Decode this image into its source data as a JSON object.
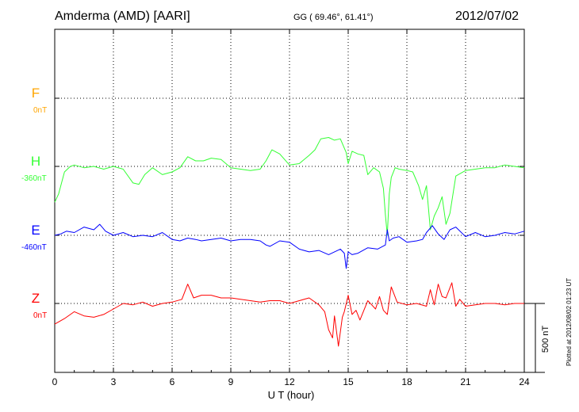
{
  "header": {
    "station": "Amderma (AMD)  [AARI]",
    "coords": "GG ( 69.46°,  61.41°)",
    "date": "2012/07/02"
  },
  "footer_note": "Plotted at 2012/08/02 01:23 UT",
  "chart_data": {
    "type": "line",
    "title": "Amderma (AMD)  [AARI]",
    "xlabel": "U T (hour)",
    "xlim": [
      0,
      24
    ],
    "xticks": [
      "0",
      "3",
      "6",
      "9",
      "12",
      "15",
      "18",
      "21",
      "24"
    ],
    "grid": true,
    "scale_bar": {
      "label": "500 nT",
      "value_nT": 500
    },
    "series": [
      {
        "name": "F",
        "baseline_label": "0nT",
        "color": "#ffa500",
        "x": [],
        "values": []
      },
      {
        "name": "H",
        "baseline_label": "-360nT",
        "color": "#33ff33",
        "x": [
          0,
          0.2,
          0.5,
          0.8,
          1.0,
          1.5,
          2.0,
          2.5,
          3.0,
          3.5,
          4.0,
          4.3,
          4.6,
          5.0,
          5.5,
          6.0,
          6.4,
          6.8,
          7.2,
          7.6,
          8.0,
          8.5,
          9.0,
          9.5,
          10.0,
          10.5,
          10.8,
          11.1,
          11.5,
          12.0,
          12.5,
          13.0,
          13.3,
          13.6,
          14.0,
          14.3,
          14.6,
          14.9,
          15.0,
          15.2,
          15.5,
          15.8,
          16.0,
          16.3,
          16.6,
          16.8,
          16.9,
          17.0,
          17.1,
          17.2,
          17.4,
          17.6,
          18.0,
          18.3,
          18.6,
          18.8,
          19.0,
          19.2,
          19.4,
          19.6,
          19.8,
          20.0,
          20.2,
          20.5,
          21.0,
          21.5,
          22.0,
          22.5,
          23.0,
          23.5,
          24.0
        ],
        "values": [
          -260,
          -200,
          -40,
          0,
          10,
          -10,
          0,
          -20,
          0,
          -20,
          -120,
          -130,
          -60,
          -10,
          -60,
          -40,
          -10,
          70,
          40,
          40,
          60,
          50,
          -10,
          -20,
          -30,
          -20,
          40,
          120,
          90,
          10,
          20,
          80,
          120,
          200,
          210,
          190,
          200,
          100,
          20,
          110,
          90,
          80,
          -60,
          -10,
          -40,
          -160,
          -350,
          -500,
          -200,
          -80,
          -10,
          -20,
          -30,
          -40,
          -140,
          -240,
          -140,
          -460,
          -360,
          -300,
          -220,
          -420,
          -340,
          -70,
          -30,
          -20,
          -10,
          -10,
          10,
          0,
          -10
        ]
      },
      {
        "name": "E",
        "baseline_label": "-460nT",
        "color": "#0000ff",
        "x": [
          0,
          0.3,
          0.6,
          1.0,
          1.5,
          2.0,
          2.3,
          2.6,
          3.0,
          3.5,
          4.0,
          4.5,
          5.0,
          5.5,
          6.0,
          6.4,
          6.8,
          7.2,
          7.5,
          8.0,
          8.5,
          9.0,
          9.5,
          10.0,
          10.5,
          10.8,
          11.0,
          11.5,
          12.0,
          12.5,
          13.0,
          13.5,
          14.0,
          14.3,
          14.6,
          14.8,
          14.9,
          15.0,
          15.2,
          15.5,
          16.0,
          16.5,
          16.9,
          17.0,
          17.1,
          17.3,
          17.6,
          18.0,
          18.5,
          18.8,
          19.0,
          19.3,
          19.6,
          19.9,
          20.2,
          20.5,
          21.0,
          21.5,
          22.0,
          22.5,
          23.0,
          23.5,
          24.0
        ],
        "values": [
          0,
          10,
          30,
          20,
          60,
          40,
          80,
          30,
          0,
          20,
          -10,
          0,
          -10,
          20,
          -30,
          -40,
          -20,
          -30,
          -40,
          -30,
          -20,
          -40,
          -30,
          -30,
          -40,
          -70,
          -80,
          -40,
          -50,
          -100,
          -120,
          -110,
          -140,
          -120,
          -100,
          -130,
          -240,
          -120,
          -140,
          -130,
          -90,
          -100,
          -70,
          40,
          -40,
          -20,
          -10,
          -50,
          -40,
          -30,
          20,
          70,
          10,
          -30,
          40,
          60,
          -10,
          20,
          -10,
          0,
          20,
          10,
          30
        ]
      },
      {
        "name": "Z",
        "baseline_label": "0nT",
        "color": "#ff0000",
        "x": [
          0,
          0.5,
          1.0,
          1.5,
          2.0,
          2.5,
          3.0,
          3.5,
          4.0,
          4.5,
          5.0,
          5.5,
          6.0,
          6.5,
          6.8,
          7.1,
          7.5,
          8.0,
          8.5,
          9.0,
          9.5,
          10.0,
          10.5,
          11.0,
          11.5,
          12.0,
          12.5,
          13.0,
          13.5,
          13.8,
          14.0,
          14.2,
          14.3,
          14.5,
          14.7,
          14.8,
          15.0,
          15.2,
          15.4,
          15.6,
          16.0,
          16.2,
          16.4,
          16.6,
          16.8,
          17.0,
          17.2,
          17.5,
          18.0,
          18.5,
          19.0,
          19.2,
          19.4,
          19.6,
          19.8,
          20.0,
          20.3,
          20.5,
          20.7,
          21.0,
          21.5,
          22.0,
          22.5,
          23.0,
          23.5,
          24.0
        ],
        "values": [
          -150,
          -110,
          -60,
          -90,
          -100,
          -80,
          -40,
          0,
          -10,
          10,
          -20,
          0,
          10,
          30,
          140,
          40,
          60,
          60,
          40,
          40,
          30,
          20,
          10,
          20,
          20,
          0,
          20,
          40,
          -10,
          -60,
          -190,
          -250,
          -90,
          -310,
          -100,
          -60,
          60,
          -80,
          -50,
          -120,
          20,
          -10,
          -40,
          50,
          -50,
          -80,
          120,
          10,
          -10,
          0,
          -20,
          100,
          -10,
          140,
          50,
          40,
          150,
          -20,
          30,
          -20,
          -10,
          0,
          0,
          -10,
          0,
          0
        ]
      }
    ]
  }
}
